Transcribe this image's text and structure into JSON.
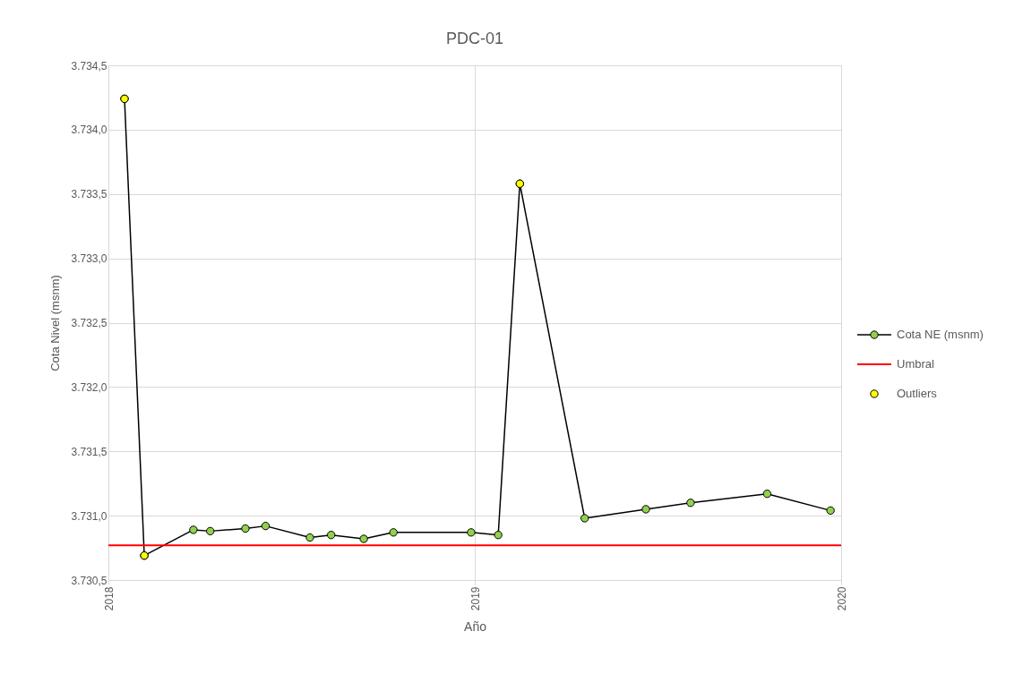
{
  "chart_data": {
    "type": "line",
    "title": "PDC-01",
    "xlabel": "Año",
    "ylabel": "Cota Nivel (msnm)",
    "x": [
      2018.044,
      2018.098,
      2018.232,
      2018.278,
      2018.374,
      2018.429,
      2018.55,
      2018.608,
      2018.697,
      2018.778,
      2018.99,
      2019.064,
      2019.123,
      2019.3,
      2019.467,
      2019.589,
      2019.798,
      2019.971
    ],
    "series": [
      {
        "name": "Cota NE (msnm)",
        "color": "#92d050",
        "marker": "circle",
        "values": [
          3734.24,
          3730.69,
          3730.89,
          3730.88,
          3730.9,
          3730.92,
          3730.83,
          3730.85,
          3730.82,
          3730.87,
          3730.87,
          3730.85,
          3733.58,
          3730.98,
          3731.05,
          3731.1,
          3731.17,
          3731.04
        ]
      },
      {
        "name": "Outliers",
        "type": "scatter",
        "color": "#ffff00",
        "marker": "circle",
        "x": [
          2018.044,
          2018.098,
          2019.123
        ],
        "values": [
          3734.24,
          3730.69,
          3733.58
        ]
      }
    ],
    "ref_lines": [
      {
        "axis": "y",
        "value": 3730.77,
        "label": "Umbral",
        "color": "#ff0000",
        "line_style": "solid"
      }
    ],
    "xlim": [
      2018,
      2020
    ],
    "xticks": [
      2018,
      2019,
      2020
    ],
    "ylim": [
      3730.5,
      3734.5
    ],
    "yticks": [
      {
        "value": 3730.5,
        "label": "3.730,5"
      },
      {
        "value": 3731,
        "label": "3.731,0"
      },
      {
        "value": 3731.5,
        "label": "3.731,5"
      },
      {
        "value": 3732,
        "label": "3.732,0"
      },
      {
        "value": 3732.5,
        "label": "3.732,5"
      },
      {
        "value": 3733,
        "label": "3.733,0"
      },
      {
        "value": 3733.5,
        "label": "3.733,5"
      },
      {
        "value": 3734,
        "label": "3.734,0"
      },
      {
        "value": 3734.5,
        "label": "3.734,5"
      }
    ],
    "grid": true,
    "legend": "right"
  }
}
